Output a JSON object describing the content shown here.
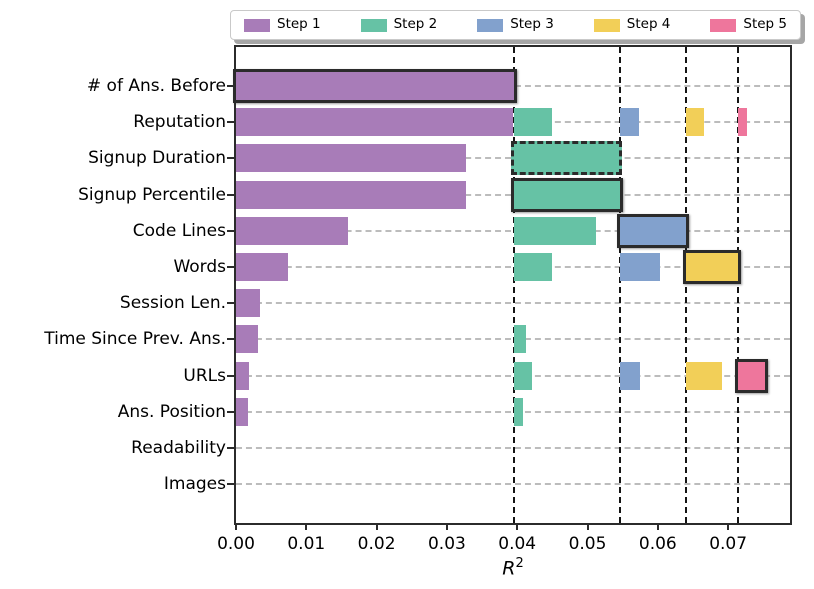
{
  "legend": {
    "items": [
      {
        "label": "Step 1",
        "color": "#a87cb8"
      },
      {
        "label": "Step 2",
        "color": "#66c2a5"
      },
      {
        "label": "Step 3",
        "color": "#82a1cd"
      },
      {
        "label": "Step 4",
        "color": "#f2cf58"
      },
      {
        "label": "Step 5",
        "color": "#ee769c"
      }
    ]
  },
  "chart_data": {
    "type": "bar",
    "orientation": "horizontal",
    "xlabel": {
      "base": "R",
      "sup": "2"
    },
    "xlim": [
      0,
      0.0788
    ],
    "xticks": [
      0,
      0.01,
      0.02,
      0.03,
      0.04,
      0.05,
      0.06,
      0.07
    ],
    "xtick_labels": [
      "0.00",
      "0.01",
      "0.02",
      "0.03",
      "0.04",
      "0.05",
      "0.06",
      "0.07"
    ],
    "grid": {
      "horizontal_gridlines": "dashed light gray, one per category row"
    },
    "step_boundary_vlines": [
      0.0396,
      0.0546,
      0.064,
      0.0714
    ],
    "legend_position": "top",
    "steps": [
      {
        "name": "Step 1",
        "color": "#a87cb8"
      },
      {
        "name": "Step 2",
        "color": "#66c2a5"
      },
      {
        "name": "Step 3",
        "color": "#82a1cd"
      },
      {
        "name": "Step 4",
        "color": "#f2cf58"
      },
      {
        "name": "Step 5",
        "color": "#ee769c"
      }
    ],
    "selected_per_step": {
      "Step 1": "# of Ans. Before",
      "Step 2": "Signup Percentile",
      "Step 3": "Code Lines",
      "Step 4": "Words",
      "Step 5": "URLs"
    },
    "categories": [
      "# of Ans. Before",
      "Reputation",
      "Signup Duration",
      "Signup Percentile",
      "Code Lines",
      "Words",
      "Session Len.",
      "Time Since Prev. Ans.",
      "URLs",
      "Ans. Position",
      "Readability",
      "Images"
    ],
    "rows": [
      {
        "category": "# of Ans. Before",
        "segments": [
          {
            "step": 1,
            "start": 0,
            "end": 0.0396,
            "outline": "solid"
          }
        ]
      },
      {
        "category": "Reputation",
        "segments": [
          {
            "step": 1,
            "start": 0,
            "end": 0.0394,
            "outline": "none"
          },
          {
            "step": 2,
            "start": 0.0396,
            "end": 0.045,
            "outline": "none"
          },
          {
            "step": 3,
            "start": 0.0546,
            "end": 0.0573,
            "outline": "none"
          },
          {
            "step": 4,
            "start": 0.064,
            "end": 0.0665,
            "outline": "none"
          },
          {
            "step": 5,
            "start": 0.0714,
            "end": 0.0727,
            "outline": "none"
          }
        ]
      },
      {
        "category": "Signup Duration",
        "segments": [
          {
            "step": 1,
            "start": 0,
            "end": 0.0327,
            "outline": "none"
          },
          {
            "step": 2,
            "start": 0.0396,
            "end": 0.0545,
            "outline": "dashed"
          }
        ]
      },
      {
        "category": "Signup Percentile",
        "segments": [
          {
            "step": 1,
            "start": 0,
            "end": 0.0327,
            "outline": "none"
          },
          {
            "step": 2,
            "start": 0.0396,
            "end": 0.0546,
            "outline": "solid"
          }
        ]
      },
      {
        "category": "Code Lines",
        "segments": [
          {
            "step": 1,
            "start": 0,
            "end": 0.016,
            "outline": "none"
          },
          {
            "step": 2,
            "start": 0.0396,
            "end": 0.0512,
            "outline": "none"
          },
          {
            "step": 3,
            "start": 0.0546,
            "end": 0.064,
            "outline": "solid"
          }
        ]
      },
      {
        "category": "Words",
        "segments": [
          {
            "step": 1,
            "start": 0,
            "end": 0.0074,
            "outline": "none"
          },
          {
            "step": 2,
            "start": 0.0396,
            "end": 0.045,
            "outline": "none"
          },
          {
            "step": 3,
            "start": 0.0546,
            "end": 0.0603,
            "outline": "none"
          },
          {
            "step": 4,
            "start": 0.064,
            "end": 0.0714,
            "outline": "solid"
          }
        ]
      },
      {
        "category": "Session Len.",
        "segments": [
          {
            "step": 1,
            "start": 0,
            "end": 0.0034,
            "outline": "none"
          }
        ]
      },
      {
        "category": "Time Since Prev. Ans.",
        "segments": [
          {
            "step": 1,
            "start": 0,
            "end": 0.0031,
            "outline": "none"
          },
          {
            "step": 2,
            "start": 0.0396,
            "end": 0.0412,
            "outline": "none"
          }
        ]
      },
      {
        "category": "URLs",
        "segments": [
          {
            "step": 1,
            "start": 0,
            "end": 0.0019,
            "outline": "none"
          },
          {
            "step": 2,
            "start": 0.0396,
            "end": 0.0421,
            "outline": "none"
          },
          {
            "step": 3,
            "start": 0.0546,
            "end": 0.0574,
            "outline": "none"
          },
          {
            "step": 4,
            "start": 0.064,
            "end": 0.0692,
            "outline": "none"
          },
          {
            "step": 5,
            "start": 0.0714,
            "end": 0.0752,
            "outline": "solid"
          }
        ]
      },
      {
        "category": "Ans. Position",
        "segments": [
          {
            "step": 1,
            "start": 0,
            "end": 0.0017,
            "outline": "none"
          },
          {
            "step": 2,
            "start": 0.0396,
            "end": 0.0408,
            "outline": "none"
          }
        ]
      },
      {
        "category": "Readability",
        "segments": []
      },
      {
        "category": "Images",
        "segments": []
      }
    ]
  }
}
